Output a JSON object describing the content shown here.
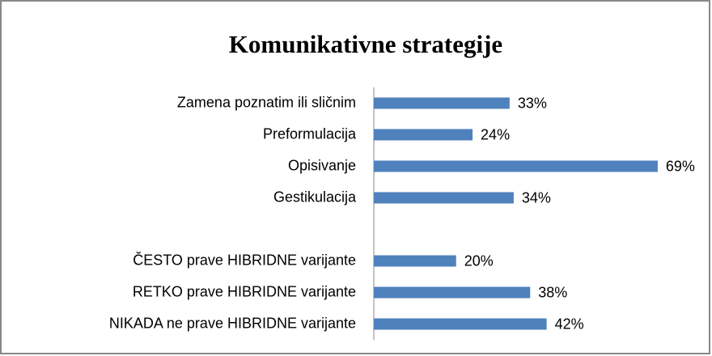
{
  "chart_data": {
    "type": "bar",
    "orientation": "horizontal",
    "title": "Komunikativne strategije",
    "categories": [
      "Zamena poznatim ili sličnim",
      "Preformulacija",
      "Opisivanje",
      "Gestikulacija",
      null,
      "ČESTO prave HIBRIDNE varijante",
      "RETKO prave HIBRIDNE varijante",
      "NIKADA ne prave HIBRIDNE varijante"
    ],
    "values": [
      33,
      24,
      69,
      34,
      null,
      20,
      38,
      42
    ],
    "value_labels": [
      "33%",
      "24%",
      "69%",
      "34%",
      null,
      "20%",
      "38%",
      "42%"
    ],
    "color": "#4f81bd",
    "xlim": [
      0,
      70
    ]
  }
}
